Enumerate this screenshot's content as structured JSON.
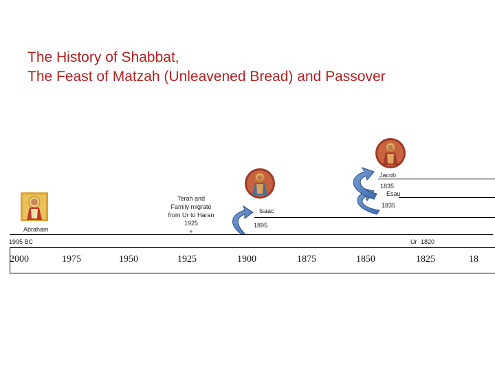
{
  "title": {
    "line1": "The History of Shabbat,",
    "line2": "The Feast of Matzah (Unleavened Bread) and Passover"
  },
  "people": {
    "abraham": {
      "name": "Abraham",
      "date": "1995 BC",
      "icon": "abraham-icon"
    },
    "terah": {
      "line1": "Terah and",
      "line2": "Family migrate",
      "line3": "from Ur to Haran",
      "line4": "1925",
      "line5": "+"
    },
    "isaac": {
      "name": "Isaac",
      "year": "1895",
      "icon": "isaac-icon"
    },
    "jacob": {
      "name": "Jacob",
      "year": "1835",
      "icon": "jacob-icon"
    },
    "esau": {
      "name": "Esau",
      "year": "1835"
    },
    "ur": {
      "label": "Ur",
      "year": "1820"
    }
  },
  "axis": {
    "ticks": [
      "2000",
      "1975",
      "1950",
      "1925",
      "1900",
      "1875",
      "1850",
      "1825",
      "18"
    ]
  },
  "colors": {
    "title": "#b22222",
    "arrow": "#4f7cc0",
    "arrow_stroke": "#2c4f80"
  }
}
